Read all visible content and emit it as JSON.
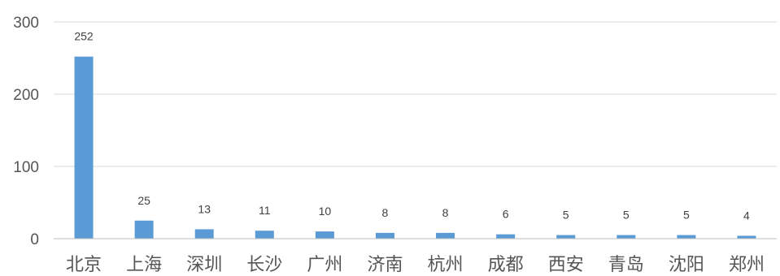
{
  "chart_data": {
    "type": "bar",
    "title": "",
    "xlabel": "",
    "ylabel": "",
    "categories": [
      "北京",
      "上海",
      "深圳",
      "长沙",
      "广州",
      "济南",
      "杭州",
      "成都",
      "西安",
      "青岛",
      "沈阳",
      "郑州"
    ],
    "values": [
      252,
      25,
      13,
      11,
      10,
      8,
      8,
      6,
      5,
      5,
      5,
      4
    ],
    "ylim": [
      0,
      300
    ],
    "yticks": [
      0,
      100,
      200,
      300
    ],
    "grid": true,
    "legend": "none",
    "colors": {
      "bar": "#5b9bd5",
      "grid": "#d9d9d9",
      "axis": "#bfbfbf"
    }
  }
}
